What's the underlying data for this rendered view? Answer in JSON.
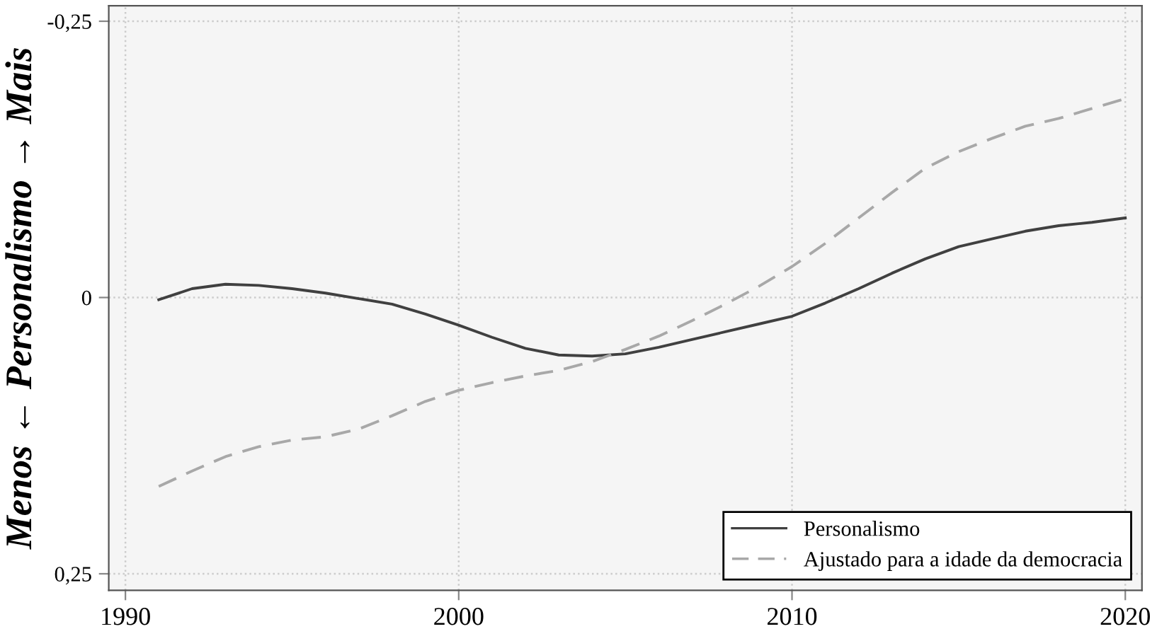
{
  "chart_data": {
    "type": "line",
    "ylabel": "Menos ← Personalismo → Mais",
    "x": [
      1991,
      1992,
      1993,
      1994,
      1995,
      1996,
      1997,
      1998,
      1999,
      2000,
      2001,
      2002,
      2003,
      2004,
      2005,
      2006,
      2007,
      2008,
      2009,
      2010,
      2011,
      2012,
      2013,
      2014,
      2015,
      2016,
      2017,
      2018,
      2019,
      2020
    ],
    "series": [
      {
        "name": "Personalismo",
        "color": "#404040",
        "line_style": "solid",
        "values": [
          0.002,
          -0.008,
          -0.012,
          -0.011,
          -0.008,
          -0.004,
          0.001,
          0.006,
          0.015,
          0.025,
          0.036,
          0.046,
          0.052,
          0.053,
          0.051,
          0.045,
          0.038,
          0.031,
          0.024,
          0.017,
          0.005,
          -0.008,
          -0.022,
          -0.035,
          -0.046,
          -0.053,
          -0.06,
          -0.065,
          -0.068,
          -0.072
        ]
      },
      {
        "name": "Ajustado para a idade da democracia",
        "color": "#a8a8a8",
        "line_style": "dashed",
        "values": [
          0.171,
          0.157,
          0.144,
          0.135,
          0.129,
          0.126,
          0.119,
          0.107,
          0.094,
          0.084,
          0.077,
          0.071,
          0.066,
          0.058,
          0.047,
          0.035,
          0.021,
          0.006,
          -0.01,
          -0.028,
          -0.049,
          -0.072,
          -0.095,
          -0.117,
          -0.132,
          -0.144,
          -0.155,
          -0.162,
          -0.171,
          -0.18
        ]
      }
    ],
    "xlim": [
      1989.5,
      2020.5
    ],
    "xticks": [
      1990,
      2000,
      2010,
      2020
    ],
    "ylim": [
      0.265,
      -0.264
    ],
    "yticks": [
      {
        "value": -0.25,
        "label": "-0,25"
      },
      0,
      {
        "value": 0.25,
        "label": "0,25"
      }
    ],
    "grid": true,
    "legend": "bottom right"
  }
}
